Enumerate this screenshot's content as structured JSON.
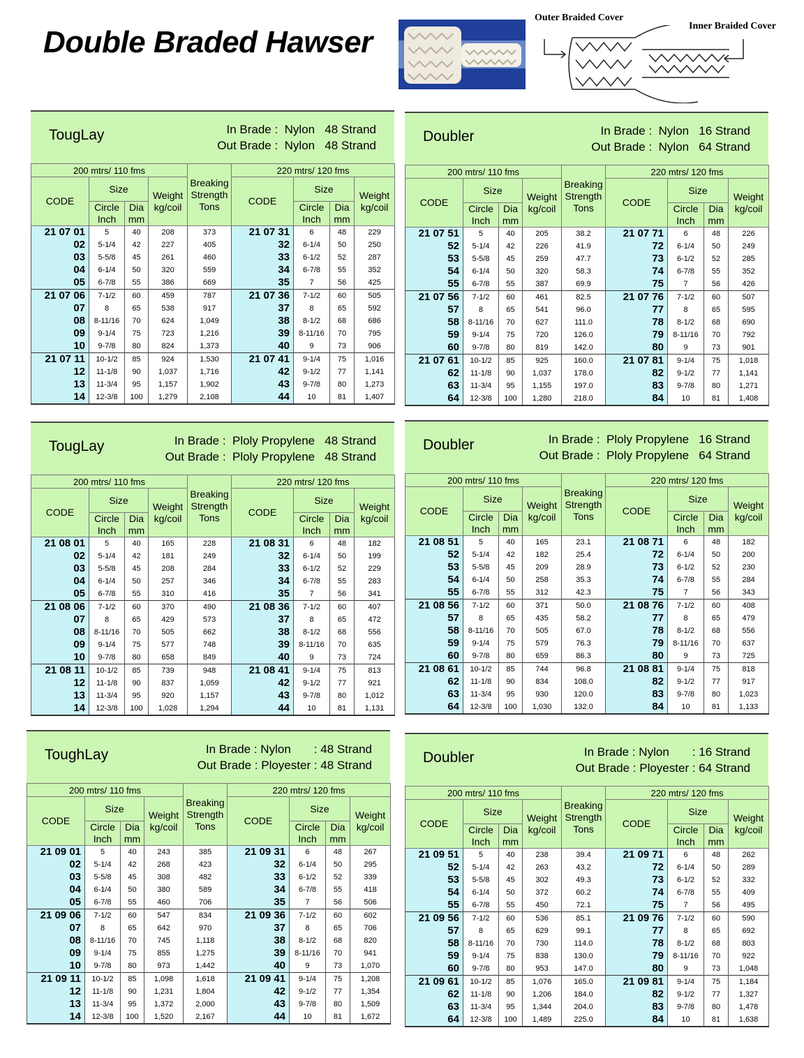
{
  "header": {
    "title": "Double Braded Hawser",
    "outer_label": "Outer Braided Cover",
    "inner_label": "Inner Braided Cover"
  },
  "headers": {
    "left_span": "200 mtrs/ 110 fms",
    "right_span": "220 mtrs/ 120 fms",
    "code": "CODE",
    "size": "Size",
    "circle": [
      "Circle",
      "Inch"
    ],
    "dia": [
      "Dia",
      "mm"
    ],
    "weight": [
      "Weight",
      "kg/coil"
    ],
    "breaking": [
      "Breaking",
      "Strength",
      "Tons"
    ]
  },
  "tables": [
    {
      "name": "TougLay",
      "in_brade": "In Brade :  Nylon   48 Strand",
      "out_brade": "Out Brade :  Nylon   48 Strand",
      "rows": [
        [
          "21 07 01",
          "5",
          "40",
          "208",
          "373",
          "21 07 31",
          "6",
          "48",
          "229"
        ],
        [
          "02",
          "5-1/4",
          "42",
          "227",
          "405",
          "32",
          "6-1/4",
          "50",
          "250"
        ],
        [
          "03",
          "5-5/8",
          "45",
          "261",
          "460",
          "33",
          "6-1/2",
          "52",
          "287"
        ],
        [
          "04",
          "6-1/4",
          "50",
          "320",
          "559",
          "34",
          "6-7/8",
          "55",
          "352"
        ],
        [
          "05",
          "6-7/8",
          "55",
          "386",
          "669",
          "35",
          "7",
          "56",
          "425"
        ],
        [
          "21 07 06",
          "7-1/2",
          "60",
          "459",
          "787",
          "21 07 36",
          "7-1/2",
          "60",
          "505"
        ],
        [
          "07",
          "8",
          "65",
          "538",
          "917",
          "37",
          "8",
          "65",
          "592"
        ],
        [
          "08",
          "8-11/16",
          "70",
          "624",
          "1,049",
          "38",
          "8-1/2",
          "68",
          "686"
        ],
        [
          "09",
          "9-1/4",
          "75",
          "723",
          "1,216",
          "39",
          "8-11/16",
          "70",
          "795"
        ],
        [
          "10",
          "9-7/8",
          "80",
          "824",
          "1,373",
          "40",
          "9",
          "73",
          "906"
        ],
        [
          "21 07 11",
          "10-1/2",
          "85",
          "924",
          "1,530",
          "21 07 41",
          "9-1/4",
          "75",
          "1,016"
        ],
        [
          "12",
          "11-1/8",
          "90",
          "1,037",
          "1,716",
          "42",
          "9-1/2",
          "77",
          "1,141"
        ],
        [
          "13",
          "11-3/4",
          "95",
          "1,157",
          "1,902",
          "43",
          "9-7/8",
          "80",
          "1,273"
        ],
        [
          "14",
          "12-3/8",
          "100",
          "1,279",
          "2,108",
          "44",
          "10",
          "81",
          "1,407"
        ]
      ]
    },
    {
      "name": "Doubler",
      "in_brade": "In Brade :  Nylon   16 Strand",
      "out_brade": "Out Brade :  Nylon   64 Strand",
      "rows": [
        [
          "21 07 51",
          "5",
          "40",
          "205",
          "38.2",
          "21 07 71",
          "6",
          "48",
          "226"
        ],
        [
          "52",
          "5-1/4",
          "42",
          "226",
          "41.9",
          "72",
          "6-1/4",
          "50",
          "249"
        ],
        [
          "53",
          "5-5/8",
          "45",
          "259",
          "47.7",
          "73",
          "6-1/2",
          "52",
          "285"
        ],
        [
          "54",
          "6-1/4",
          "50",
          "320",
          "58.3",
          "74",
          "6-7/8",
          "55",
          "352"
        ],
        [
          "55",
          "6-7/8",
          "55",
          "387",
          "69.9",
          "75",
          "7",
          "56",
          "426"
        ],
        [
          "21 07 56",
          "7-1/2",
          "60",
          "461",
          "82.5",
          "21 07 76",
          "7-1/2",
          "60",
          "507"
        ],
        [
          "57",
          "8",
          "65",
          "541",
          "96.0",
          "77",
          "8",
          "65",
          "595"
        ],
        [
          "58",
          "8-11/16",
          "70",
          "627",
          "111.0",
          "78",
          "8-1/2",
          "68",
          "690"
        ],
        [
          "59",
          "9-1/4",
          "75",
          "720",
          "126.0",
          "79",
          "8-11/16",
          "70",
          "792"
        ],
        [
          "60",
          "9-7/8",
          "80",
          "819",
          "142.0",
          "80",
          "9",
          "73",
          "901"
        ],
        [
          "21 07 61",
          "10-1/2",
          "85",
          "925",
          "160.0",
          "21 07 81",
          "9-1/4",
          "75",
          "1,018"
        ],
        [
          "62",
          "11-1/8",
          "90",
          "1,037",
          "178.0",
          "82",
          "9-1/2",
          "77",
          "1,141"
        ],
        [
          "63",
          "11-3/4",
          "95",
          "1,155",
          "197.0",
          "83",
          "9-7/8",
          "80",
          "1,271"
        ],
        [
          "64",
          "12-3/8",
          "100",
          "1,280",
          "218.0",
          "84",
          "10",
          "81",
          "1,408"
        ]
      ]
    },
    {
      "name": "TougLay",
      "in_brade": "In Brade :  Ploly Propylene   48 Strand",
      "out_brade": "Out Brade :  Ploly Propylene   48 Strand",
      "rows": [
        [
          "21 08 01",
          "5",
          "40",
          "165",
          "228",
          "21 08 31",
          "6",
          "48",
          "182"
        ],
        [
          "02",
          "5-1/4",
          "42",
          "181",
          "249",
          "32",
          "6-1/4",
          "50",
          "199"
        ],
        [
          "03",
          "5-5/8",
          "45",
          "208",
          "284",
          "33",
          "6-1/2",
          "52",
          "229"
        ],
        [
          "04",
          "6-1/4",
          "50",
          "257",
          "346",
          "34",
          "6-7/8",
          "55",
          "283"
        ],
        [
          "05",
          "6-7/8",
          "55",
          "310",
          "416",
          "35",
          "7",
          "56",
          "341"
        ],
        [
          "21 08 06",
          "7-1/2",
          "60",
          "370",
          "490",
          "21 08 36",
          "7-1/2",
          "60",
          "407"
        ],
        [
          "07",
          "8",
          "65",
          "429",
          "573",
          "37",
          "8",
          "65",
          "472"
        ],
        [
          "08",
          "8-11/16",
          "70",
          "505",
          "662",
          "38",
          "8-1/2",
          "68",
          "556"
        ],
        [
          "09",
          "9-1/4",
          "75",
          "577",
          "748",
          "39",
          "8-11/16",
          "70",
          "635"
        ],
        [
          "10",
          "9-7/8",
          "80",
          "658",
          "849",
          "40",
          "9",
          "73",
          "724"
        ],
        [
          "21 08 11",
          "10-1/2",
          "85",
          "739",
          "948",
          "21 08 41",
          "9-1/4",
          "75",
          "813"
        ],
        [
          "12",
          "11-1/8",
          "90",
          "837",
          "1,059",
          "42",
          "9-1/2",
          "77",
          "921"
        ],
        [
          "13",
          "11-3/4",
          "95",
          "920",
          "1,157",
          "43",
          "9-7/8",
          "80",
          "1,012"
        ],
        [
          "14",
          "12-3/8",
          "100",
          "1,028",
          "1,294",
          "44",
          "10",
          "81",
          "1,131"
        ]
      ]
    },
    {
      "name": "Doubler",
      "in_brade": "In Brade :  Ploly Propylene   16 Strand",
      "out_brade": "Out Brade :  Ploly Propylene   64 Strand",
      "rows": [
        [
          "21 08 51",
          "5",
          "40",
          "165",
          "23.1",
          "21 08 71",
          "6",
          "48",
          "182"
        ],
        [
          "52",
          "5-1/4",
          "42",
          "182",
          "25.4",
          "72",
          "6-1/4",
          "50",
          "200"
        ],
        [
          "53",
          "5-5/8",
          "45",
          "209",
          "28.9",
          "73",
          "6-1/2",
          "52",
          "230"
        ],
        [
          "54",
          "6-1/4",
          "50",
          "258",
          "35.3",
          "74",
          "6-7/8",
          "55",
          "284"
        ],
        [
          "55",
          "6-7/8",
          "55",
          "312",
          "42.3",
          "75",
          "7",
          "56",
          "343"
        ],
        [
          "21 08 56",
          "7-1/2",
          "60",
          "371",
          "50.0",
          "21 08 76",
          "7-1/2",
          "60",
          "408"
        ],
        [
          "57",
          "8",
          "65",
          "435",
          "58.2",
          "77",
          "8",
          "65",
          "479"
        ],
        [
          "58",
          "8-11/16",
          "70",
          "505",
          "67.0",
          "78",
          "8-1/2",
          "68",
          "556"
        ],
        [
          "59",
          "9-1/4",
          "75",
          "579",
          "76.3",
          "79",
          "8-11/16",
          "70",
          "637"
        ],
        [
          "60",
          "9-7/8",
          "80",
          "659",
          "86.3",
          "80",
          "9",
          "73",
          "725"
        ],
        [
          "21 08 61",
          "10-1/2",
          "85",
          "744",
          "96.8",
          "21 08 81",
          "9-1/4",
          "75",
          "818"
        ],
        [
          "62",
          "11-1/8",
          "90",
          "834",
          "108.0",
          "82",
          "9-1/2",
          "77",
          "917"
        ],
        [
          "63",
          "11-3/4",
          "95",
          "930",
          "120.0",
          "83",
          "9-7/8",
          "80",
          "1,023"
        ],
        [
          "64",
          "12-3/8",
          "100",
          "1,030",
          "132.0",
          "84",
          "10",
          "81",
          "1,133"
        ]
      ]
    },
    {
      "name": "ToughLay",
      "in_brade": "In Brade : Nylon       : 48 Strand",
      "out_brade": "Out Brade : Ployester : 48 Strand",
      "rows": [
        [
          "21 09 01",
          "5",
          "40",
          "243",
          "385",
          "21 09 31",
          "6",
          "48",
          "267"
        ],
        [
          "02",
          "5-1/4",
          "42",
          "268",
          "423",
          "32",
          "6-1/4",
          "50",
          "295"
        ],
        [
          "03",
          "5-5/8",
          "45",
          "308",
          "482",
          "33",
          "6-1/2",
          "52",
          "339"
        ],
        [
          "04",
          "6-1/4",
          "50",
          "380",
          "589",
          "34",
          "6-7/8",
          "55",
          "418"
        ],
        [
          "05",
          "6-7/8",
          "55",
          "460",
          "706",
          "35",
          "7",
          "56",
          "506"
        ],
        [
          "21 09 06",
          "7-1/2",
          "60",
          "547",
          "834",
          "21 09 36",
          "7-1/2",
          "60",
          "602"
        ],
        [
          "07",
          "8",
          "65",
          "642",
          "970",
          "37",
          "8",
          "65",
          "706"
        ],
        [
          "08",
          "8-11/16",
          "70",
          "745",
          "1,118",
          "38",
          "8-1/2",
          "68",
          "820"
        ],
        [
          "09",
          "9-1/4",
          "75",
          "855",
          "1,275",
          "39",
          "8-11/16",
          "70",
          "941"
        ],
        [
          "10",
          "9-7/8",
          "80",
          "973",
          "1,442",
          "40",
          "9",
          "73",
          "1,070"
        ],
        [
          "21 09 11",
          "10-1/2",
          "85",
          "1,098",
          "1,618",
          "21 09 41",
          "9-1/4",
          "75",
          "1,208"
        ],
        [
          "12",
          "11-1/8",
          "90",
          "1,231",
          "1,804",
          "42",
          "9-1/2",
          "77",
          "1,354"
        ],
        [
          "13",
          "11-3/4",
          "95",
          "1,372",
          "2,000",
          "43",
          "9-7/8",
          "80",
          "1,509"
        ],
        [
          "14",
          "12-3/8",
          "100",
          "1,520",
          "2,167",
          "44",
          "10",
          "81",
          "1,672"
        ]
      ]
    },
    {
      "name": "Doubler",
      "in_brade": "In Brade : Nylon       : 16 Strand",
      "out_brade": "Out Brade : Ployester : 64 Strand",
      "rows": [
        [
          "21 09 51",
          "5",
          "40",
          "238",
          "39.4",
          "21 09 71",
          "6",
          "48",
          "262"
        ],
        [
          "52",
          "5-1/4",
          "42",
          "263",
          "43.2",
          "72",
          "6-1/4",
          "50",
          "289"
        ],
        [
          "53",
          "5-5/8",
          "45",
          "302",
          "49.3",
          "73",
          "6-1/2",
          "52",
          "332"
        ],
        [
          "54",
          "6-1/4",
          "50",
          "372",
          "60.2",
          "74",
          "6-7/8",
          "55",
          "409"
        ],
        [
          "55",
          "6-7/8",
          "55",
          "450",
          "72.1",
          "75",
          "7",
          "56",
          "495"
        ],
        [
          "21 09 56",
          "7-1/2",
          "60",
          "536",
          "85.1",
          "21 09 76",
          "7-1/2",
          "60",
          "590"
        ],
        [
          "57",
          "8",
          "65",
          "629",
          "99.1",
          "77",
          "8",
          "65",
          "692"
        ],
        [
          "58",
          "8-11/16",
          "70",
          "730",
          "114.0",
          "78",
          "8-1/2",
          "68",
          "803"
        ],
        [
          "59",
          "9-1/4",
          "75",
          "838",
          "130.0",
          "79",
          "8-11/16",
          "70",
          "922"
        ],
        [
          "60",
          "9-7/8",
          "80",
          "953",
          "147.0",
          "80",
          "9",
          "73",
          "1,048"
        ],
        [
          "21 09 61",
          "10-1/2",
          "85",
          "1,076",
          "165.0",
          "21 09 81",
          "9-1/4",
          "75",
          "1,184"
        ],
        [
          "62",
          "11-1/8",
          "90",
          "1,206",
          "184.0",
          "82",
          "9-1/2",
          "77",
          "1,327"
        ],
        [
          "63",
          "11-3/4",
          "95",
          "1,344",
          "204.0",
          "83",
          "9-7/8",
          "80",
          "1,478"
        ],
        [
          "64",
          "12-3/8",
          "100",
          "1,489",
          "225.0",
          "84",
          "10",
          "81",
          "1,638"
        ]
      ]
    }
  ]
}
